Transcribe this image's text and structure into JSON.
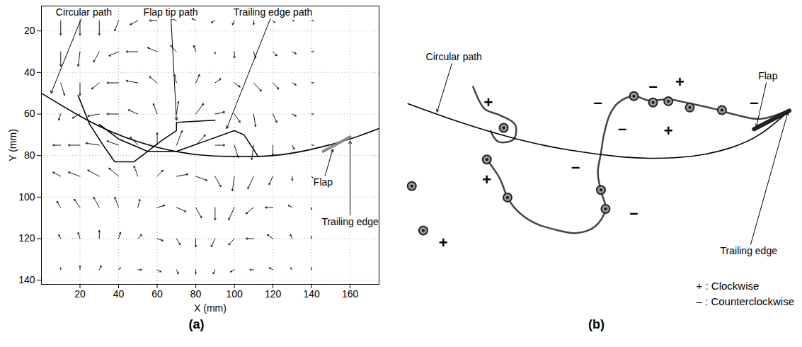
{
  "chart_data": [
    {
      "type": "vector",
      "panel": "(a)",
      "xlabel": "X (mm)",
      "ylabel": "Y (mm)",
      "xlim": [
        0,
        175
      ],
      "ylim": [
        142,
        8
      ],
      "xticks": [
        20,
        40,
        60,
        80,
        100,
        120,
        140,
        160
      ],
      "yticks": [
        20,
        40,
        60,
        80,
        100,
        120,
        140
      ],
      "grid": true,
      "vectors": [
        [
          10,
          15,
          0,
          7
        ],
        [
          20,
          15,
          0,
          7
        ],
        [
          30,
          15,
          0,
          7
        ],
        [
          40,
          15,
          -2,
          5
        ],
        [
          50,
          15,
          -4,
          2
        ],
        [
          60,
          15,
          -4,
          0
        ],
        [
          70,
          15,
          -3,
          -1
        ],
        [
          80,
          15,
          -2,
          -1
        ],
        [
          90,
          15,
          -2,
          1
        ],
        [
          100,
          15,
          -1,
          2
        ],
        [
          110,
          15,
          0,
          2
        ],
        [
          120,
          15,
          1,
          1
        ],
        [
          130,
          15,
          1,
          0
        ],
        [
          140,
          15,
          1,
          0
        ],
        [
          10,
          30,
          0,
          7
        ],
        [
          20,
          30,
          -1,
          7
        ],
        [
          30,
          30,
          -3,
          5
        ],
        [
          40,
          30,
          -5,
          2
        ],
        [
          50,
          30,
          -6,
          0
        ],
        [
          60,
          30,
          -5,
          -2
        ],
        [
          70,
          30,
          -3,
          -3
        ],
        [
          80,
          30,
          -1,
          -3
        ],
        [
          90,
          30,
          0,
          1
        ],
        [
          100,
          30,
          0,
          3
        ],
        [
          110,
          30,
          1,
          3
        ],
        [
          120,
          30,
          2,
          2
        ],
        [
          130,
          30,
          2,
          1
        ],
        [
          140,
          30,
          1,
          0
        ],
        [
          10,
          45,
          2,
          6
        ],
        [
          20,
          45,
          0,
          6
        ],
        [
          30,
          45,
          -4,
          3
        ],
        [
          40,
          45,
          -6,
          0
        ],
        [
          50,
          45,
          -6,
          -1
        ],
        [
          60,
          45,
          -4,
          -3
        ],
        [
          70,
          45,
          -1,
          -4
        ],
        [
          80,
          45,
          2,
          -4
        ],
        [
          90,
          45,
          3,
          -2
        ],
        [
          100,
          45,
          3,
          2
        ],
        [
          110,
          45,
          4,
          4
        ],
        [
          120,
          45,
          3,
          3
        ],
        [
          130,
          45,
          2,
          1
        ],
        [
          140,
          45,
          1,
          0
        ],
        [
          10,
          60,
          -1,
          3
        ],
        [
          20,
          60,
          -4,
          2
        ],
        [
          30,
          60,
          -6,
          1
        ],
        [
          40,
          60,
          -6,
          0
        ],
        [
          50,
          60,
          -5,
          -2
        ],
        [
          60,
          60,
          -2,
          -5
        ],
        [
          70,
          60,
          1,
          -6
        ],
        [
          80,
          60,
          4,
          -5
        ],
        [
          90,
          60,
          5,
          -1
        ],
        [
          100,
          60,
          3,
          4
        ],
        [
          110,
          60,
          1,
          6
        ],
        [
          120,
          60,
          2,
          4
        ],
        [
          130,
          60,
          2,
          1
        ],
        [
          140,
          60,
          1,
          0
        ],
        [
          10,
          75,
          -4,
          0
        ],
        [
          20,
          75,
          -6,
          0
        ],
        [
          30,
          75,
          -7,
          -1
        ],
        [
          40,
          75,
          -6,
          -2
        ],
        [
          50,
          75,
          -4,
          -4
        ],
        [
          60,
          75,
          0,
          -6
        ],
        [
          70,
          75,
          3,
          -7
        ],
        [
          80,
          75,
          5,
          -5
        ],
        [
          90,
          75,
          5,
          0
        ],
        [
          100,
          75,
          2,
          6
        ],
        [
          110,
          75,
          -1,
          7
        ],
        [
          120,
          75,
          0,
          5
        ],
        [
          130,
          75,
          1,
          2
        ],
        [
          140,
          75,
          1,
          0
        ],
        [
          10,
          90,
          -4,
          -2
        ],
        [
          20,
          90,
          -6,
          -2
        ],
        [
          30,
          90,
          -6,
          -3
        ],
        [
          40,
          90,
          -5,
          -4
        ],
        [
          50,
          90,
          -2,
          -5
        ],
        [
          60,
          90,
          3,
          -3
        ],
        [
          70,
          90,
          6,
          -1
        ],
        [
          80,
          90,
          6,
          2
        ],
        [
          90,
          90,
          3,
          5
        ],
        [
          100,
          90,
          -1,
          7
        ],
        [
          110,
          90,
          -3,
          6
        ],
        [
          120,
          90,
          -2,
          4
        ],
        [
          130,
          90,
          0,
          2
        ],
        [
          140,
          90,
          1,
          1
        ],
        [
          10,
          105,
          -2,
          -3
        ],
        [
          20,
          105,
          -3,
          -4
        ],
        [
          30,
          105,
          -3,
          -5
        ],
        [
          40,
          105,
          -2,
          -5
        ],
        [
          50,
          105,
          1,
          -4
        ],
        [
          60,
          105,
          4,
          -1
        ],
        [
          70,
          105,
          5,
          2
        ],
        [
          80,
          105,
          3,
          5
        ],
        [
          90,
          105,
          0,
          6
        ],
        [
          100,
          105,
          -3,
          6
        ],
        [
          110,
          105,
          -4,
          3
        ],
        [
          120,
          105,
          -4,
          0
        ],
        [
          130,
          105,
          -2,
          -1
        ],
        [
          140,
          105,
          0,
          1
        ],
        [
          10,
          120,
          -1,
          -2
        ],
        [
          20,
          120,
          -1,
          -3
        ],
        [
          30,
          120,
          0,
          -4
        ],
        [
          40,
          120,
          1,
          -3
        ],
        [
          50,
          120,
          2,
          -2
        ],
        [
          60,
          120,
          3,
          1
        ],
        [
          70,
          120,
          2,
          3
        ],
        [
          80,
          120,
          0,
          4
        ],
        [
          90,
          120,
          -2,
          4
        ],
        [
          100,
          120,
          -3,
          3
        ],
        [
          110,
          120,
          -4,
          0
        ],
        [
          120,
          120,
          -3,
          -2
        ],
        [
          130,
          120,
          -1,
          -2
        ],
        [
          140,
          120,
          0,
          -1
        ],
        [
          10,
          135,
          0,
          -1
        ],
        [
          20,
          135,
          0,
          -2
        ],
        [
          30,
          135,
          1,
          -2
        ],
        [
          40,
          135,
          1,
          -1
        ],
        [
          50,
          135,
          2,
          0
        ],
        [
          60,
          135,
          2,
          1
        ],
        [
          70,
          135,
          1,
          2
        ],
        [
          80,
          135,
          0,
          2
        ],
        [
          90,
          135,
          -1,
          2
        ],
        [
          100,
          135,
          -2,
          1
        ],
        [
          110,
          135,
          -2,
          0
        ],
        [
          120,
          135,
          -2,
          -1
        ],
        [
          130,
          135,
          -1,
          -1
        ],
        [
          140,
          135,
          0,
          -1
        ]
      ],
      "circular_path": [
        [
          0,
          50
        ],
        [
          20,
          61
        ],
        [
          40,
          70
        ],
        [
          60,
          76
        ],
        [
          80,
          79.5
        ],
        [
          100,
          80.5
        ],
        [
          120,
          80
        ],
        [
          140,
          77
        ],
        [
          160,
          72
        ],
        [
          175,
          67
        ]
      ],
      "flap_tip_path": [
        [
          19,
          51
        ],
        [
          25,
          65
        ],
        [
          32,
          75
        ],
        [
          38,
          83
        ],
        [
          48,
          83
        ],
        [
          55,
          78
        ],
        [
          62,
          73
        ],
        [
          70,
          68
        ],
        [
          70,
          64
        ],
        [
          90,
          63
        ]
      ],
      "trailing_edge_path": [
        [
          30,
          65
        ],
        [
          40,
          72
        ],
        [
          55,
          78
        ],
        [
          70,
          78
        ],
        [
          85,
          73
        ],
        [
          100,
          68
        ],
        [
          105,
          70
        ],
        [
          112,
          80
        ]
      ],
      "flap": [
        [
          146,
          78
        ],
        [
          160,
          71
        ]
      ],
      "annotations": [
        {
          "text": "Circular path",
          "text_x": 22,
          "text_y": 11,
          "x": 5,
          "y": 50
        },
        {
          "text": "Flap tip path",
          "text_x": 67,
          "text_y": 11,
          "x": 70,
          "y": 63
        },
        {
          "text": "Trailing edge path",
          "text_x": 120,
          "text_y": 11,
          "x": 96,
          "y": 67
        },
        {
          "text": "Flap",
          "text_x": 146,
          "text_y": 93,
          "x": 151,
          "y": 77
        },
        {
          "text": "Trailing edge",
          "text_x": 160,
          "text_y": 112,
          "x": 160,
          "y": 73
        }
      ]
    },
    {
      "type": "flow_visualization",
      "panel": "(b)",
      "tick_labels": false,
      "xlim": [
        0,
        513
      ],
      "ylim": [
        475,
        0
      ],
      "circular_path": [
        [
          10,
          152
        ],
        [
          80,
          182
        ],
        [
          150,
          207
        ],
        [
          220,
          225
        ],
        [
          290,
          236
        ],
        [
          330,
          238
        ],
        [
          380,
          235
        ],
        [
          430,
          222
        ],
        [
          470,
          200
        ],
        [
          508,
          163
        ]
      ],
      "flap": [
        [
          462,
          192
        ],
        [
          508,
          163
        ]
      ],
      "streaks": [
        [
          [
            505,
            163
          ],
          [
            470,
            176
          ],
          [
            440,
            170
          ],
          [
            410,
            160
          ],
          [
            380,
            152
          ],
          [
            350,
            145
          ],
          [
            325,
            147
          ],
          [
            305,
            140
          ],
          [
            285,
            150
          ],
          [
            274,
            168
          ],
          [
            266,
            200
          ],
          [
            262,
            230
          ],
          [
            258,
            260
          ],
          [
            262,
            290
          ],
          [
            268,
            318
          ],
          [
            255,
            345
          ],
          [
            230,
            356
          ],
          [
            200,
            350
          ],
          [
            175,
            340
          ],
          [
            152,
            320
          ],
          [
            140,
            300
          ],
          [
            130,
            270
          ],
          [
            113,
            240
          ]
        ],
        [
          [
            95,
            125
          ],
          [
            110,
            160
          ],
          [
            130,
            170
          ],
          [
            150,
            185
          ],
          [
            148,
            208
          ],
          [
            128,
            212
          ],
          [
            118,
            195
          ]
        ]
      ],
      "vortices": [
        [
          135,
          190
        ],
        [
          30,
          352
        ],
        [
          15,
          282
        ],
        [
          113,
          240
        ],
        [
          140,
          300
        ],
        [
          268,
          318
        ],
        [
          262,
          288
        ],
        [
          305,
          140
        ],
        [
          330,
          150
        ],
        [
          350,
          148
        ],
        [
          378,
          158
        ],
        [
          420,
          162
        ]
      ],
      "rotation_labels": [
        {
          "text": "+",
          "x": 115,
          "y": 150
        },
        {
          "text": "+",
          "x": 365,
          "y": 118
        },
        {
          "text": "+",
          "x": 350,
          "y": 195
        },
        {
          "text": "+",
          "x": 113,
          "y": 272
        },
        {
          "text": "+",
          "x": 56,
          "y": 372
        },
        {
          "text": "–",
          "x": 258,
          "y": 150
        },
        {
          "text": "–",
          "x": 330,
          "y": 125
        },
        {
          "text": "–",
          "x": 290,
          "y": 192
        },
        {
          "text": "–",
          "x": 229,
          "y": 252
        },
        {
          "text": "–",
          "x": 305,
          "y": 325
        },
        {
          "text": "–",
          "x": 462,
          "y": 150
        }
      ],
      "annotations": [
        {
          "text": "Circular path",
          "text_x": 70,
          "text_y": 78,
          "x": 48,
          "y": 165
        },
        {
          "text": "Flap",
          "text_x": 480,
          "text_y": 108,
          "x": 465,
          "y": 188
        },
        {
          "text": "Trailing edge",
          "text_x": 455,
          "text_y": 385,
          "x": 506,
          "y": 166
        }
      ],
      "legend": "bottom-right",
      "legend_entries": [
        "+ : Clockwise",
        "– : Counterclockwise"
      ]
    }
  ]
}
